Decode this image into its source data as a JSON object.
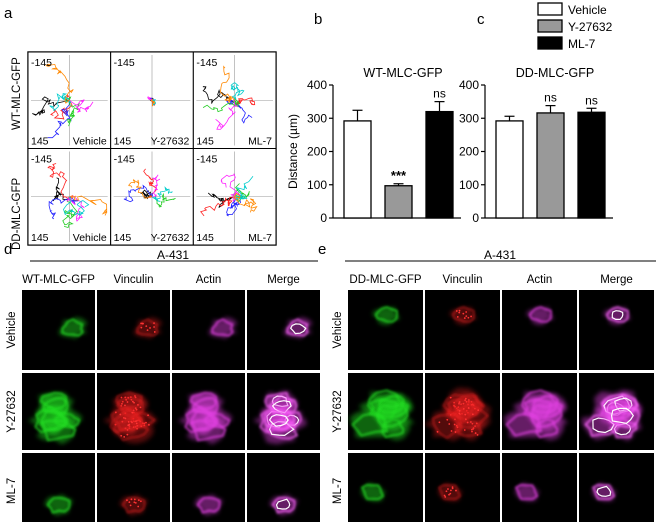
{
  "panel_letters": {
    "a": "a",
    "b": "b",
    "c": "c",
    "d": "d",
    "e": "e"
  },
  "panel_a": {
    "row_labels": [
      "WT-MLC-GFP",
      "DD-MLC-GFP"
    ],
    "col_labels": [
      "Vehicle",
      "Y-27632",
      "ML-7"
    ],
    "axis_min": "-145",
    "axis_max": "145"
  },
  "legend": {
    "items": [
      {
        "label": "Vehicle",
        "color": "#ffffff"
      },
      {
        "label": "Y-27632",
        "color": "#999999"
      },
      {
        "label": "ML-7",
        "color": "#000000"
      }
    ]
  },
  "chart_data": [
    {
      "type": "bar",
      "title": "WT-MLC-GFP",
      "categories": [
        "Vehicle",
        "Y-27632",
        "ML-7"
      ],
      "values": [
        292,
        97,
        320
      ],
      "errors": [
        32,
        6,
        30
      ],
      "significance": [
        "",
        "***",
        "ns"
      ],
      "ylabel": "Distance (µm)",
      "ylim": [
        0,
        400
      ],
      "yticks": [
        "0",
        "100",
        "200",
        "300",
        "400"
      ],
      "colors": [
        "#ffffff",
        "#999999",
        "#000000"
      ]
    },
    {
      "type": "bar",
      "title": "DD-MLC-GFP",
      "categories": [
        "Vehicle",
        "Y-27632",
        "ML-7"
      ],
      "values": [
        292,
        316,
        318
      ],
      "errors": [
        14,
        22,
        12
      ],
      "significance": [
        "",
        "ns",
        "ns"
      ],
      "ylabel": "Distance (µm)",
      "ylim": [
        0,
        400
      ],
      "yticks": [
        "0",
        "100",
        "200",
        "300",
        "400"
      ],
      "colors": [
        "#ffffff",
        "#999999",
        "#000000"
      ]
    }
  ],
  "panel_d": {
    "title": "A-431",
    "col_labels": [
      "WT-MLC-GFP",
      "Vinculin",
      "Actin",
      "Merge"
    ],
    "row_labels": [
      "Vehicle",
      "Y-27632",
      "ML-7"
    ]
  },
  "panel_e": {
    "title": "A-431",
    "col_labels": [
      "DD-MLC-GFP",
      "Vinculin",
      "Actin",
      "Merge"
    ],
    "row_labels": [
      "Vehicle",
      "Y-27632",
      "ML-7"
    ]
  },
  "colors": {
    "green": "#22dd22",
    "red": "#ee2222",
    "magenta": "#e040e0",
    "merge": "#f0d8e0"
  }
}
